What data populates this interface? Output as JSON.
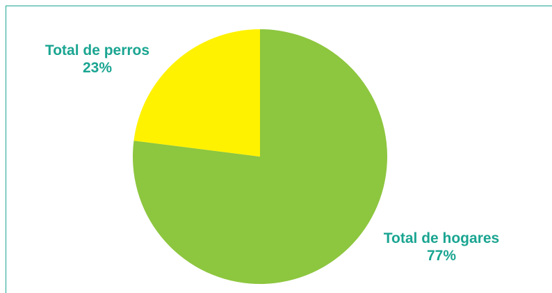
{
  "chart_data": {
    "type": "pie",
    "title": "",
    "categories": [
      "Total de hogares",
      "Total de perros"
    ],
    "values": [
      77,
      23
    ],
    "value_labels": [
      "77%",
      "23%"
    ],
    "colors": [
      "#8dc63f",
      "#fff200"
    ],
    "label_color": "#1aa591",
    "start_angle": "12 o'clock",
    "direction": "clockwise",
    "legend": "none"
  }
}
